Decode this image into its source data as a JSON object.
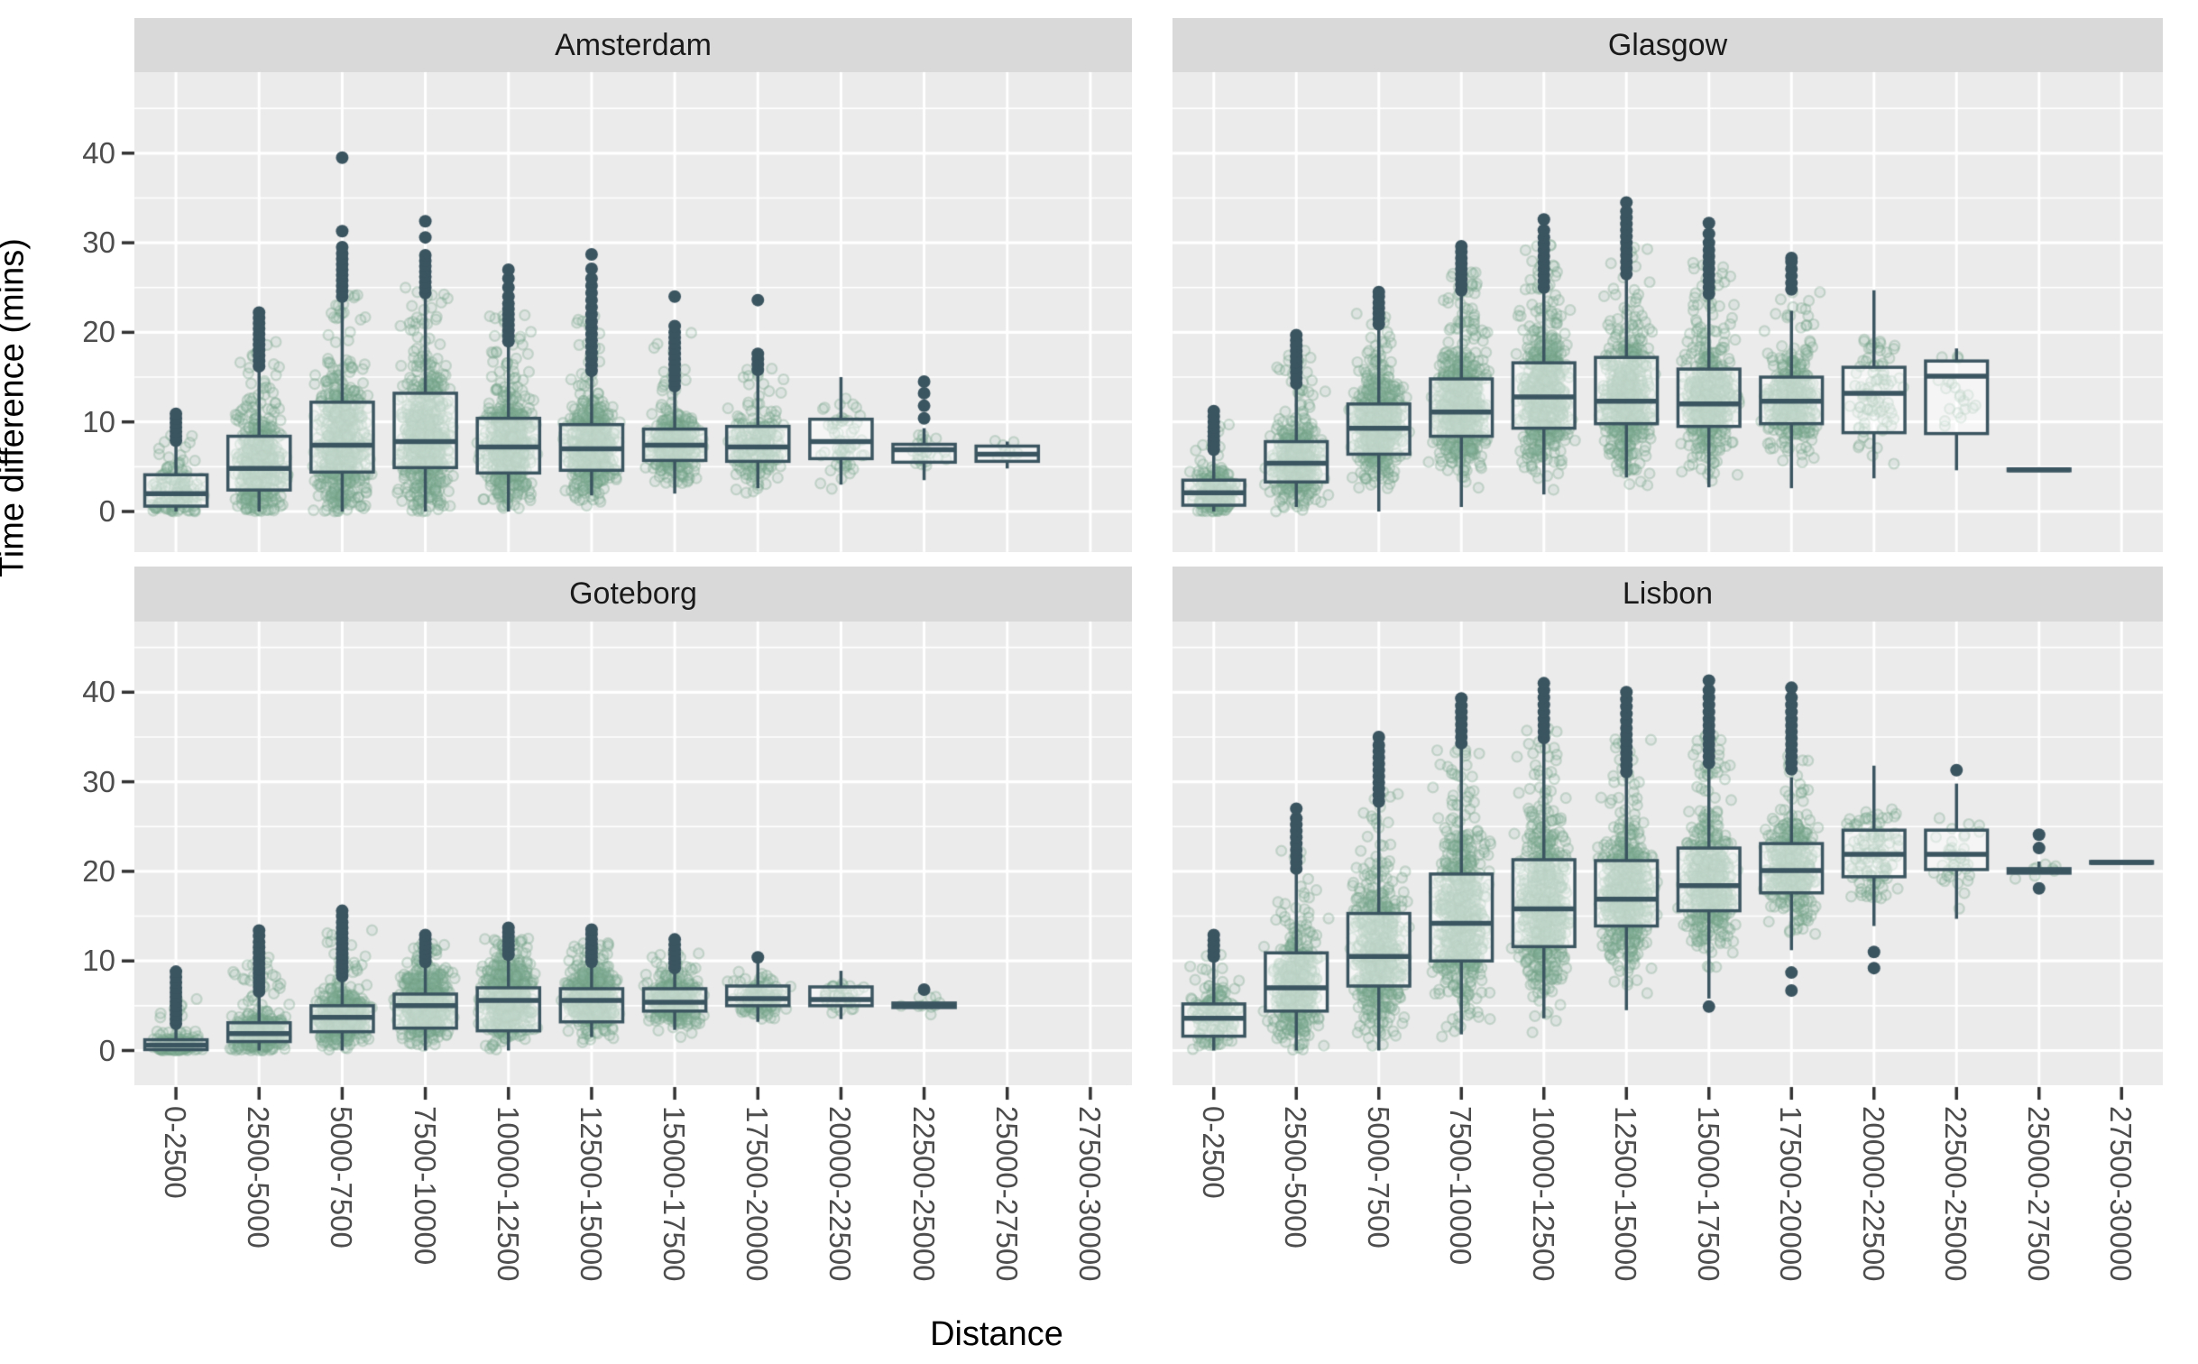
{
  "chart_data": {
    "type": "boxplot-jitter-facets",
    "title": "",
    "x_axis_title": "Distance",
    "y_axis_title": "Time difference (mins)",
    "y_ticks": [
      "0",
      "10",
      "20",
      "30",
      "40"
    ],
    "y_tick_values": [
      0,
      10,
      20,
      30,
      40
    ],
    "ylim": [
      -4.5,
      49
    ],
    "grid": "on",
    "legend": "none",
    "x_categories": [
      "0-2500",
      "2500-5000",
      "5000-7500",
      "7500-10000",
      "10000-12500",
      "12500-15000",
      "15000-17500",
      "17500-20000",
      "20000-22500",
      "22500-25000",
      "25000-27500",
      "27500-30000"
    ],
    "colors": {
      "panel_bg": "#EBEBEB",
      "strip_bg": "#D9D9D9",
      "grid": "#FFFFFF",
      "box_stroke": "#3B5560",
      "box_fill": "rgba(255,255,255,0.5)",
      "point": "#6F9E86",
      "axis_text": "#4D4D4D",
      "tick_mark": "#333333"
    },
    "facets": [
      {
        "title": "Amsterdam",
        "boxes": [
          {
            "q1": 0.6,
            "med": 2.0,
            "q3": 4.1,
            "lo": 0,
            "hi": 7.4,
            "out": [
              7.9,
              8.4,
              8.9,
              9.4,
              9.9,
              10.4,
              10.9
            ],
            "n": 150,
            "jmax": 8.5
          },
          {
            "q1": 2.4,
            "med": 4.8,
            "q3": 8.4,
            "lo": 0,
            "hi": 15.8,
            "out": [
              16.2,
              16.8,
              17.4,
              18,
              18.6,
              19.2,
              19.8,
              20.4,
              21,
              21.6,
              22.2
            ],
            "n": 450,
            "jmax": 19
          },
          {
            "q1": 4.4,
            "med": 7.4,
            "q3": 12.2,
            "lo": 0,
            "hi": 23.4,
            "out": [
              24,
              24.6,
              25.2,
              25.8,
              26.4,
              27,
              27.6,
              28.2,
              28.8,
              29.5,
              31.3,
              39.5
            ],
            "n": 600,
            "jmax": 25
          },
          {
            "q1": 4.9,
            "med": 7.8,
            "q3": 13.2,
            "lo": 0,
            "hi": 24,
            "out": [
              24.4,
              25,
              25.6,
              26.2,
              26.8,
              27.4,
              28,
              28.6,
              30.6,
              32.4
            ],
            "n": 600,
            "jmax": 25
          },
          {
            "q1": 4.3,
            "med": 7.2,
            "q3": 10.4,
            "lo": 0,
            "hi": 18.5,
            "out": [
              19,
              19.6,
              20.2,
              20.8,
              21.4,
              22,
              22.6,
              23.2,
              24,
              25,
              26,
              27
            ],
            "n": 550,
            "jmax": 23
          },
          {
            "q1": 4.6,
            "med": 7.0,
            "q3": 9.7,
            "lo": 1.8,
            "hi": 15.2,
            "out": [
              15.7,
              16.3,
              17,
              17.7,
              18.4,
              19.1,
              19.8,
              20.5,
              21.2,
              22,
              22.8,
              23.6,
              24.4,
              25.2,
              26,
              27.1,
              28.7
            ],
            "n": 550,
            "jmax": 22
          },
          {
            "q1": 5.7,
            "med": 7.4,
            "q3": 9.2,
            "lo": 2.0,
            "hi": 13.5,
            "out": [
              14,
              14.6,
              15.2,
              15.8,
              16.4,
              17,
              17.6,
              18.2,
              18.8,
              19.4,
              20,
              20.7,
              24
            ],
            "n": 400,
            "jmax": 20
          },
          {
            "q1": 5.6,
            "med": 7.2,
            "q3": 9.5,
            "lo": 2.6,
            "hi": 15.3,
            "out": [
              15.8,
              16.4,
              17,
              17.6,
              23.6
            ],
            "n": 220,
            "jmax": 16
          },
          {
            "q1": 5.9,
            "med": 7.8,
            "q3": 10.3,
            "lo": 3.0,
            "hi": 15.0,
            "out": [],
            "n": 60,
            "jmax": 13
          },
          {
            "q1": 5.5,
            "med": 6.9,
            "q3": 7.5,
            "lo": 3.5,
            "hi": 9.3,
            "out": [
              10.4,
              11.8,
              13.2,
              14.5
            ],
            "n": 25,
            "jmax": 9
          },
          {
            "q1": 5.6,
            "med": 6.4,
            "q3": 7.3,
            "lo": 4.8,
            "hi": 7.8,
            "out": [],
            "n": 8,
            "jmax": 8
          },
          null
        ]
      },
      {
        "title": "Glasgow",
        "boxes": [
          {
            "q1": 0.7,
            "med": 2.1,
            "q3": 3.5,
            "lo": 0,
            "hi": 6.4,
            "out": [
              6.9,
              7.4,
              7.9,
              8.4,
              8.9,
              9.4,
              10,
              10.6,
              11.2
            ],
            "n": 220,
            "jmax": 10
          },
          {
            "q1": 3.3,
            "med": 5.4,
            "q3": 7.8,
            "lo": 0.5,
            "hi": 13.8,
            "out": [
              14.3,
              14.9,
              15.5,
              16.1,
              16.7,
              17.3,
              17.9,
              18.5,
              19.1,
              19.7
            ],
            "n": 450,
            "jmax": 18
          },
          {
            "q1": 6.4,
            "med": 9.3,
            "q3": 12.0,
            "lo": 0,
            "hi": 20.3,
            "out": [
              20.9,
              21.5,
              22.1,
              22.7,
              23.3,
              24,
              24.5
            ],
            "n": 580,
            "jmax": 22.5
          },
          {
            "q1": 8.4,
            "med": 11.1,
            "q3": 14.8,
            "lo": 0.5,
            "hi": 24.2,
            "out": [
              24.7,
              25.3,
              25.9,
              26.5,
              27.1,
              27.7,
              28.3,
              29,
              29.6
            ],
            "n": 620,
            "jmax": 27
          },
          {
            "q1": 9.3,
            "med": 12.8,
            "q3": 16.6,
            "lo": 1.9,
            "hi": 24.5,
            "out": [
              25,
              25.7,
              26.4,
              27.1,
              27.8,
              28.5,
              29.2,
              29.9,
              30.6,
              31.4,
              32.6
            ],
            "n": 620,
            "jmax": 30
          },
          {
            "q1": 9.8,
            "med": 12.3,
            "q3": 17.2,
            "lo": 3.8,
            "hi": 26,
            "out": [
              26.5,
              27.2,
              27.9,
              28.6,
              29.3,
              30,
              30.7,
              31.4,
              32.1,
              32.8,
              33.5,
              34.5
            ],
            "n": 570,
            "jmax": 30
          },
          {
            "q1": 9.5,
            "med": 12.0,
            "q3": 15.9,
            "lo": 2.7,
            "hi": 23.8,
            "out": [
              24.3,
              25,
              25.7,
              26.4,
              27.1,
              27.8,
              28.5,
              29.2,
              30,
              31,
              32.2
            ],
            "n": 500,
            "jmax": 28
          },
          {
            "q1": 9.8,
            "med": 12.3,
            "q3": 15.0,
            "lo": 2.6,
            "hi": 22.4,
            "out": [
              24.8,
              25.5,
              26.3,
              27.1,
              27.9,
              28.3
            ],
            "n": 350,
            "jmax": 25
          },
          {
            "q1": 8.8,
            "med": 13.2,
            "q3": 16.1,
            "lo": 3.7,
            "hi": 24.7,
            "out": [],
            "n": 90,
            "jmax": 20
          },
          {
            "q1": 8.7,
            "med": 15.1,
            "q3": 16.8,
            "lo": 4.6,
            "hi": 18.2,
            "out": [],
            "n": 20,
            "jmax": 15
          },
          {
            "q1": 4.55,
            "med": 4.65,
            "q3": 4.75,
            "lo": 4.55,
            "hi": 4.75,
            "out": [],
            "n": 0,
            "jmax": 0
          },
          null
        ]
      },
      {
        "title": "Goteborg",
        "boxes": [
          {
            "q1": 0.1,
            "med": 0.6,
            "q3": 1.2,
            "lo": 0,
            "hi": 2.6,
            "out": [
              3,
              3.5,
              4,
              4.5,
              5,
              5.5,
              6,
              6.5,
              7,
              7.6,
              8.2,
              8.8
            ],
            "n": 180,
            "jmax": 6.5
          },
          {
            "q1": 1.0,
            "med": 1.9,
            "q3": 3.1,
            "lo": 0,
            "hi": 6.2,
            "out": [
              6.6,
              7.1,
              7.6,
              8.1,
              8.6,
              9.1,
              9.7,
              10.3,
              10.9,
              11.5,
              12.1,
              12.8,
              13.4
            ],
            "n": 400,
            "jmax": 11.5
          },
          {
            "q1": 2.1,
            "med": 3.7,
            "q3": 5.0,
            "lo": 0,
            "hi": 7.9,
            "out": [
              8.3,
              8.8,
              9.3,
              9.8,
              10.3,
              10.8,
              11.3,
              11.9,
              12.5,
              13.1,
              13.7,
              14.3,
              15,
              15.6
            ],
            "n": 550,
            "jmax": 13.5
          },
          {
            "q1": 2.5,
            "med": 5.0,
            "q3": 6.3,
            "lo": 0,
            "hi": 9.5,
            "out": [
              9.9,
              10.4,
              10.9,
              11.4,
              11.9,
              12.4,
              12.9
            ],
            "n": 580,
            "jmax": 12
          },
          {
            "q1": 2.2,
            "med": 5.6,
            "q3": 7.0,
            "lo": 0,
            "hi": 10.3,
            "out": [
              10.7,
              11.2,
              11.7,
              12.2,
              12.7,
              13.2,
              13.7
            ],
            "n": 580,
            "jmax": 12.5
          },
          {
            "q1": 3.2,
            "med": 5.6,
            "q3": 6.9,
            "lo": 1.5,
            "hi": 9.5,
            "out": [
              9.9,
              10.4,
              10.9,
              11.4,
              11.9,
              12.4,
              13,
              13.5
            ],
            "n": 500,
            "jmax": 12
          },
          {
            "q1": 4.4,
            "med": 5.4,
            "q3": 6.9,
            "lo": 2.3,
            "hi": 8.8,
            "out": [
              9.2,
              9.7,
              10.2,
              10.7,
              11.2,
              11.8,
              12.4
            ],
            "n": 380,
            "jmax": 11
          },
          {
            "q1": 5.0,
            "med": 5.8,
            "q3": 7.2,
            "lo": 3.2,
            "hi": 10.0,
            "out": [
              10.4
            ],
            "n": 130,
            "jmax": 9
          },
          {
            "q1": 5.0,
            "med": 5.7,
            "q3": 7.1,
            "lo": 3.5,
            "hi": 8.9,
            "out": [],
            "n": 40,
            "jmax": 8
          },
          {
            "q1": 4.8,
            "med": 5.0,
            "q3": 5.3,
            "lo": 4.8,
            "hi": 5.3,
            "out": [
              6.8
            ],
            "n": 10,
            "jmax": 6
          },
          null,
          null
        ]
      },
      {
        "title": "Lisbon",
        "boxes": [
          {
            "q1": 1.6,
            "med": 3.6,
            "q3": 5.2,
            "lo": 0,
            "hi": 10.0,
            "out": [
              10.5,
              11.1,
              11.7,
              12.3,
              12.9
            ],
            "n": 150,
            "jmax": 11
          },
          {
            "q1": 4.4,
            "med": 7.0,
            "q3": 10.9,
            "lo": 0,
            "hi": 19.8,
            "out": [
              20.3,
              21,
              21.7,
              22.4,
              23.1,
              23.8,
              24.5,
              25.2,
              25.9,
              27
            ],
            "n": 420,
            "jmax": 23
          },
          {
            "q1": 7.2,
            "med": 10.5,
            "q3": 15.3,
            "lo": 0,
            "hi": 27.3,
            "out": [
              27.8,
              28.5,
              29.2,
              29.9,
              30.6,
              31.3,
              32,
              32.7,
              33.4,
              34.1,
              35
            ],
            "n": 570,
            "jmax": 29
          },
          {
            "q1": 10.0,
            "med": 14.2,
            "q3": 19.7,
            "lo": 1.8,
            "hi": 33.8,
            "out": [
              34.3,
              35,
              35.7,
              36.4,
              37.1,
              37.8,
              38.5,
              39.3
            ],
            "n": 620,
            "jmax": 34
          },
          {
            "q1": 11.6,
            "med": 15.8,
            "q3": 21.3,
            "lo": 3.6,
            "hi": 34.3,
            "out": [
              34.9,
              35.6,
              36.3,
              37,
              37.8,
              38.6,
              39.4,
              40.2,
              41
            ],
            "n": 620,
            "jmax": 36
          },
          {
            "q1": 13.9,
            "med": 16.9,
            "q3": 21.2,
            "lo": 4.5,
            "hi": 30.5,
            "out": [
              31.1,
              31.8,
              32.5,
              33.2,
              33.9,
              34.6,
              35.3,
              36,
              36.8,
              37.6,
              38.4,
              39.2,
              40
            ],
            "n": 570,
            "jmax": 35
          },
          {
            "q1": 15.6,
            "med": 18.4,
            "q3": 22.6,
            "lo": 5.8,
            "hi": 31.5,
            "out": [
              4.9,
              32.1,
              32.8,
              33.5,
              34.2,
              34.9,
              35.6,
              36.3,
              37,
              37.8,
              38.6,
              39.4,
              40.2,
              41.3
            ],
            "n": 500,
            "jmax": 36
          },
          {
            "q1": 17.6,
            "med": 20.1,
            "q3": 23.1,
            "lo": 11.2,
            "hi": 30.5,
            "out": [
              6.7,
              8.7,
              31.4,
              32.1,
              32.8,
              33.5,
              34.2,
              34.9,
              35.6,
              36.3,
              37,
              37.8,
              38.6,
              39.4,
              40.5
            ],
            "n": 380,
            "jmax": 33
          },
          {
            "q1": 19.4,
            "med": 21.9,
            "q3": 24.6,
            "lo": 13.9,
            "hi": 31.8,
            "out": [
              9.2,
              11.0
            ],
            "n": 120,
            "jmax": 27
          },
          {
            "q1": 20.2,
            "med": 21.9,
            "q3": 24.6,
            "lo": 14.7,
            "hi": 29.8,
            "out": [
              31.3
            ],
            "n": 40,
            "jmax": 26
          },
          {
            "q1": 19.8,
            "med": 20.0,
            "q3": 20.3,
            "lo": 19.8,
            "hi": 21.1,
            "out": [
              24.1,
              22.6,
              18.1
            ],
            "n": 8,
            "jmax": 21
          },
          {
            "q1": 20.9,
            "med": 21.0,
            "q3": 21.1,
            "lo": 20.9,
            "hi": 21.1,
            "out": [],
            "n": 0,
            "jmax": 0
          }
        ]
      }
    ]
  }
}
